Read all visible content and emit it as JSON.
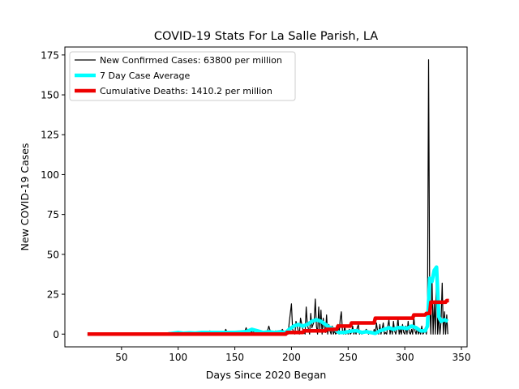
{
  "chart_data": {
    "type": "line",
    "title": "COVID-19 Stats For La Salle Parish, LA",
    "xlabel": "Days Since 2020 Began",
    "ylabel": "New COVID-19 Cases",
    "xlim": [
      0,
      355
    ],
    "ylim": [
      -8,
      180
    ],
    "xticks": [
      50,
      100,
      150,
      200,
      250,
      300,
      350
    ],
    "yticks": [
      0,
      25,
      50,
      75,
      100,
      125,
      150,
      175
    ],
    "grid": false,
    "legend_position": "top-left",
    "series": [
      {
        "name": "New Confirmed Cases: 63800 per million",
        "color": "#000000",
        "style": "thin-line",
        "points": [
          [
            20,
            0
          ],
          [
            80,
            0
          ],
          [
            90,
            0
          ],
          [
            92,
            1
          ],
          [
            94,
            0
          ],
          [
            100,
            0
          ],
          [
            104,
            1
          ],
          [
            106,
            0
          ],
          [
            112,
            0
          ],
          [
            114,
            1
          ],
          [
            116,
            0
          ],
          [
            120,
            1
          ],
          [
            122,
            0
          ],
          [
            126,
            0
          ],
          [
            128,
            2
          ],
          [
            130,
            0
          ],
          [
            134,
            1
          ],
          [
            136,
            0
          ],
          [
            140,
            0
          ],
          [
            142,
            3
          ],
          [
            144,
            0
          ],
          [
            150,
            1
          ],
          [
            152,
            0
          ],
          [
            158,
            0
          ],
          [
            160,
            4
          ],
          [
            162,
            0
          ],
          [
            166,
            2
          ],
          [
            168,
            0
          ],
          [
            172,
            1
          ],
          [
            174,
            0
          ],
          [
            178,
            0
          ],
          [
            180,
            5
          ],
          [
            182,
            0
          ],
          [
            186,
            2
          ],
          [
            188,
            0
          ],
          [
            192,
            3
          ],
          [
            194,
            0
          ],
          [
            197,
            0
          ],
          [
            198,
            7
          ],
          [
            200,
            19
          ],
          [
            201,
            3
          ],
          [
            203,
            0
          ],
          [
            204,
            8
          ],
          [
            206,
            2
          ],
          [
            207,
            0
          ],
          [
            208,
            10
          ],
          [
            210,
            3
          ],
          [
            212,
            0
          ],
          [
            213,
            17
          ],
          [
            214,
            6
          ],
          [
            216,
            0
          ],
          [
            217,
            13
          ],
          [
            218,
            4
          ],
          [
            220,
            8
          ],
          [
            221,
            22
          ],
          [
            222,
            5
          ],
          [
            223,
            0
          ],
          [
            224,
            17
          ],
          [
            225,
            3
          ],
          [
            226,
            15
          ],
          [
            227,
            0
          ],
          [
            228,
            10
          ],
          [
            229,
            4
          ],
          [
            230,
            1
          ],
          [
            231,
            12
          ],
          [
            232,
            0
          ],
          [
            233,
            6
          ],
          [
            234,
            2
          ],
          [
            235,
            0
          ],
          [
            236,
            5
          ],
          [
            237,
            0
          ],
          [
            238,
            2
          ],
          [
            239,
            0
          ],
          [
            240,
            1
          ],
          [
            241,
            6
          ],
          [
            242,
            0
          ],
          [
            243,
            9
          ],
          [
            244,
            14
          ],
          [
            245,
            2
          ],
          [
            246,
            0
          ],
          [
            247,
            5
          ],
          [
            248,
            0
          ],
          [
            249,
            2
          ],
          [
            250,
            0
          ],
          [
            251,
            3
          ],
          [
            252,
            0
          ],
          [
            253,
            1
          ],
          [
            254,
            5
          ],
          [
            255,
            0
          ],
          [
            256,
            2
          ],
          [
            257,
            0
          ],
          [
            258,
            4
          ],
          [
            259,
            6
          ],
          [
            260,
            0
          ],
          [
            261,
            2
          ],
          [
            262,
            0
          ],
          [
            264,
            1
          ],
          [
            266,
            3
          ],
          [
            268,
            0
          ],
          [
            270,
            2
          ],
          [
            272,
            0
          ],
          [
            273,
            3
          ],
          [
            274,
            0
          ],
          [
            275,
            7
          ],
          [
            276,
            2
          ],
          [
            277,
            0
          ],
          [
            278,
            6
          ],
          [
            279,
            0
          ],
          [
            280,
            3
          ],
          [
            281,
            7
          ],
          [
            282,
            0
          ],
          [
            283,
            1
          ],
          [
            284,
            0
          ],
          [
            285,
            5
          ],
          [
            286,
            9
          ],
          [
            287,
            0
          ],
          [
            288,
            4
          ],
          [
            289,
            0
          ],
          [
            290,
            8
          ],
          [
            291,
            2
          ],
          [
            292,
            0
          ],
          [
            293,
            3
          ],
          [
            294,
            10
          ],
          [
            295,
            0
          ],
          [
            296,
            3
          ],
          [
            297,
            0
          ],
          [
            298,
            6
          ],
          [
            299,
            1
          ],
          [
            300,
            0
          ],
          [
            301,
            5
          ],
          [
            302,
            0
          ],
          [
            303,
            8
          ],
          [
            304,
            1
          ],
          [
            305,
            0
          ],
          [
            306,
            3
          ],
          [
            307,
            0
          ],
          [
            308,
            11
          ],
          [
            309,
            2
          ],
          [
            310,
            0
          ],
          [
            311,
            4
          ],
          [
            312,
            0
          ],
          [
            313,
            2
          ],
          [
            314,
            0
          ],
          [
            315,
            5
          ],
          [
            316,
            0
          ],
          [
            317,
            1
          ],
          [
            318,
            3
          ],
          [
            319,
            0
          ],
          [
            320,
            5
          ],
          [
            321,
            172
          ],
          [
            322,
            20
          ],
          [
            323,
            0
          ],
          [
            324,
            35
          ],
          [
            325,
            0
          ],
          [
            326,
            20
          ],
          [
            327,
            0
          ],
          [
            328,
            38
          ],
          [
            329,
            0
          ],
          [
            330,
            12
          ],
          [
            331,
            0
          ],
          [
            332,
            8
          ],
          [
            333,
            32
          ],
          [
            334,
            0
          ],
          [
            335,
            14
          ],
          [
            336,
            0
          ],
          [
            337,
            12
          ],
          [
            338,
            0
          ]
        ]
      },
      {
        "name": "7 Day Case Average",
        "color": "#00ffff",
        "style": "thick-line",
        "points": [
          [
            20,
            0
          ],
          [
            90,
            0
          ],
          [
            95,
            0.5
          ],
          [
            100,
            1
          ],
          [
            105,
            0.5
          ],
          [
            110,
            0.8
          ],
          [
            115,
            0.6
          ],
          [
            120,
            1
          ],
          [
            130,
            1
          ],
          [
            140,
            1
          ],
          [
            150,
            1
          ],
          [
            160,
            1.5
          ],
          [
            165,
            3
          ],
          [
            170,
            2
          ],
          [
            175,
            1
          ],
          [
            180,
            1.5
          ],
          [
            185,
            1
          ],
          [
            190,
            1.5
          ],
          [
            195,
            1
          ],
          [
            198,
            3
          ],
          [
            202,
            5
          ],
          [
            206,
            6
          ],
          [
            210,
            5
          ],
          [
            214,
            6
          ],
          [
            218,
            8
          ],
          [
            222,
            9
          ],
          [
            226,
            8
          ],
          [
            230,
            6
          ],
          [
            234,
            4
          ],
          [
            238,
            3
          ],
          [
            242,
            1
          ],
          [
            246,
            1
          ],
          [
            250,
            1.5
          ],
          [
            254,
            2
          ],
          [
            258,
            2
          ],
          [
            262,
            1
          ],
          [
            266,
            1.5
          ],
          [
            270,
            1
          ],
          [
            274,
            0.5
          ],
          [
            278,
            2
          ],
          [
            282,
            3
          ],
          [
            286,
            4
          ],
          [
            290,
            3
          ],
          [
            294,
            4
          ],
          [
            298,
            4
          ],
          [
            302,
            3.5
          ],
          [
            306,
            5
          ],
          [
            310,
            4
          ],
          [
            314,
            2
          ],
          [
            318,
            2
          ],
          [
            320,
            5
          ],
          [
            322,
            35
          ],
          [
            324,
            33
          ],
          [
            326,
            40
          ],
          [
            328,
            42
          ],
          [
            330,
            11
          ],
          [
            332,
            8
          ],
          [
            335,
            9
          ],
          [
            338,
            8
          ]
        ]
      },
      {
        "name": "Cumulative Deaths: 1410.2 per million",
        "color": "#ee0000",
        "style": "thick-line",
        "points": [
          [
            20,
            0
          ],
          [
            195,
            0
          ],
          [
            196,
            1
          ],
          [
            210,
            1
          ],
          [
            211,
            2
          ],
          [
            230,
            2
          ],
          [
            231,
            3
          ],
          [
            240,
            3
          ],
          [
            241,
            5
          ],
          [
            252,
            5
          ],
          [
            253,
            7
          ],
          [
            273,
            7
          ],
          [
            274,
            10
          ],
          [
            307,
            10
          ],
          [
            308,
            12
          ],
          [
            318,
            12
          ],
          [
            319,
            13
          ],
          [
            322,
            13
          ],
          [
            323,
            20
          ],
          [
            336,
            20
          ],
          [
            337,
            21
          ],
          [
            339,
            21
          ]
        ]
      }
    ]
  }
}
